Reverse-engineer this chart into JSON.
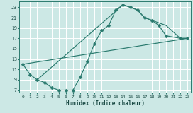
{
  "xlabel": "Humidex (Indice chaleur)",
  "bg_color": "#cce8e5",
  "grid_color": "#ffffff",
  "line_color": "#2a7a6e",
  "xlim": [
    -0.5,
    23.5
  ],
  "ylim": [
    6.5,
    24.2
  ],
  "xticks": [
    0,
    1,
    2,
    3,
    4,
    5,
    6,
    7,
    8,
    9,
    10,
    11,
    12,
    13,
    14,
    15,
    16,
    17,
    18,
    19,
    20,
    21,
    22,
    23
  ],
  "yticks": [
    7,
    9,
    11,
    13,
    15,
    17,
    19,
    21,
    23
  ],
  "line1_x": [
    0,
    1,
    2,
    3,
    4,
    5,
    6,
    7,
    8,
    9,
    10,
    11,
    12,
    13,
    14,
    15,
    16,
    17,
    18,
    19,
    20,
    22,
    23
  ],
  "line1_y": [
    12,
    10,
    9,
    8.5,
    7.5,
    7,
    7,
    7,
    9.5,
    12.5,
    16,
    18.5,
    19.5,
    22.5,
    23.5,
    23,
    22.5,
    21,
    20.5,
    19.5,
    17.5,
    17,
    17
  ],
  "line2_x": [
    0,
    23
  ],
  "line2_y": [
    12,
    17
  ],
  "line3_x": [
    2,
    14,
    15,
    16,
    17,
    18,
    19,
    20,
    22,
    23
  ],
  "line3_y": [
    9,
    23.5,
    23,
    22.5,
    21,
    20.5,
    20,
    19.5,
    17,
    17
  ]
}
